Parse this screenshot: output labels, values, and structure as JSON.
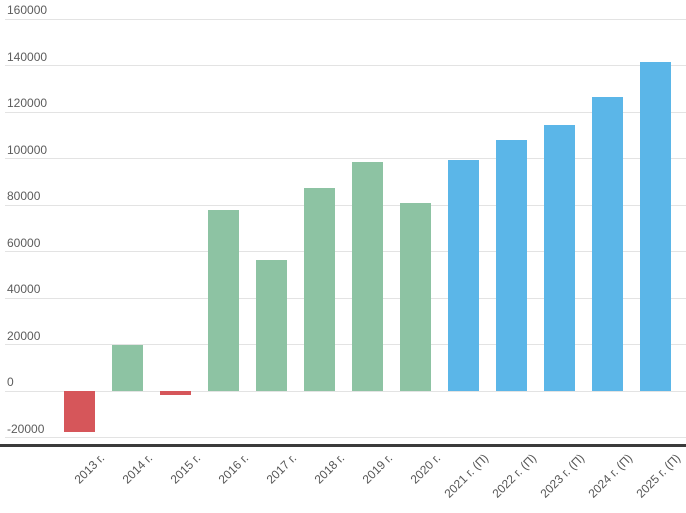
{
  "chart_data": {
    "type": "bar",
    "title": "",
    "xlabel": "",
    "ylabel": "",
    "categories": [
      "2013 г.",
      "2014 г.",
      "2015 г.",
      "2016 г.",
      "2017 г.",
      "2018 г.",
      "2019 г.",
      "2020 г.",
      "2021 г. (П)",
      "2022 г. (П)",
      "2023 г. (П)",
      "2024 г. (П)",
      "2025 г. (П)"
    ],
    "values": [
      -17500,
      19900,
      -1700,
      77700,
      56200,
      87300,
      98300,
      80700,
      99500,
      108000,
      114500,
      126300,
      141500
    ],
    "bar_colors": [
      "#d6565a",
      "#8dc3a3",
      "#d6565a",
      "#8dc3a3",
      "#8dc3a3",
      "#8dc3a3",
      "#8dc3a3",
      "#8dc3a3",
      "#5bb6e8",
      "#5bb6e8",
      "#5bb6e8",
      "#5bb6e8",
      "#5bb6e8"
    ],
    "series_meta": {
      "negative_color": "#d6565a",
      "actual_color": "#8dc3a3",
      "forecast_color": "#5bb6e8"
    },
    "ylim": [
      -20000,
      160000
    ],
    "yticks": [
      -20000,
      0,
      20000,
      40000,
      60000,
      80000,
      100000,
      120000,
      140000,
      160000
    ],
    "grid": true,
    "legend": "none",
    "style_colors": {
      "gridline": "#e3e3e3",
      "axis_line": "#3b3b3b",
      "tick_label": "#5c5c5c",
      "background": "#ffffff"
    }
  }
}
